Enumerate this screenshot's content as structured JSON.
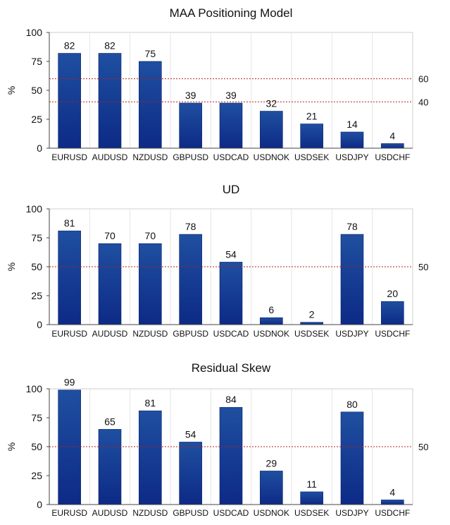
{
  "chart_data": [
    {
      "type": "bar",
      "title": "MAA Positioning Model",
      "ylabel": "%",
      "ylim": [
        0,
        100
      ],
      "yticks": [
        0,
        25,
        50,
        75,
        100
      ],
      "categories": [
        "EURUSD",
        "AUDUSD",
        "NZDUSD",
        "GBPUSD",
        "USDCAD",
        "USDNOK",
        "USDSEK",
        "USDJPY",
        "USDCHF"
      ],
      "values": [
        82,
        82,
        75,
        39,
        39,
        32,
        21,
        14,
        4
      ],
      "reference_lines": [
        60,
        40
      ],
      "bar_color": "#1f4fa0",
      "reference_color": "#b22222"
    },
    {
      "type": "bar",
      "title": "UD",
      "ylabel": "%",
      "ylim": [
        0,
        100
      ],
      "yticks": [
        0,
        25,
        50,
        75,
        100
      ],
      "categories": [
        "EURUSD",
        "AUDUSD",
        "NZDUSD",
        "GBPUSD",
        "USDCAD",
        "USDNOK",
        "USDSEK",
        "USDJPY",
        "USDCHF"
      ],
      "values": [
        81,
        70,
        70,
        78,
        54,
        6,
        2,
        78,
        20
      ],
      "reference_lines": [
        50
      ],
      "bar_color": "#1f4fa0",
      "reference_color": "#b22222"
    },
    {
      "type": "bar",
      "title": "Residual Skew",
      "ylabel": "%",
      "ylim": [
        0,
        100
      ],
      "yticks": [
        0,
        25,
        50,
        75,
        100
      ],
      "categories": [
        "EURUSD",
        "AUDUSD",
        "NZDUSD",
        "GBPUSD",
        "USDCAD",
        "USDNOK",
        "USDSEK",
        "USDJPY",
        "USDCHF"
      ],
      "values": [
        99,
        65,
        81,
        54,
        84,
        29,
        11,
        80,
        4
      ],
      "reference_lines": [
        50
      ],
      "bar_color": "#1f4fa0",
      "reference_color": "#b22222"
    }
  ]
}
